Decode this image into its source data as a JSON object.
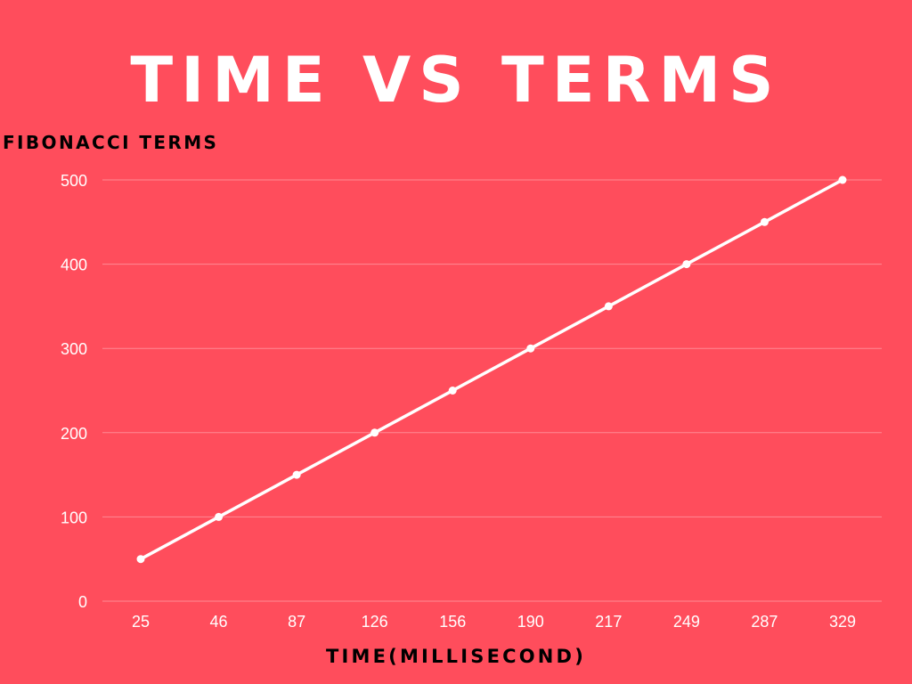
{
  "colors": {
    "background": "#ff4d5c",
    "line": "#ffffff",
    "gridline": "#ff8a94",
    "tick_text": "#ffffff",
    "axis_title_text": "#000000",
    "title_text": "#ffffff"
  },
  "chart_data": {
    "type": "line",
    "title": "TIME VS TERMS",
    "xlabel": "TIME(MILLISECOND)",
    "ylabel": "FIBONACCI TERMS",
    "categories": [
      "25",
      "46",
      "87",
      "126",
      "156",
      "190",
      "217",
      "249",
      "287",
      "329"
    ],
    "series": [
      {
        "values": [
          50,
          100,
          150,
          200,
          250,
          300,
          350,
          400,
          450,
          500
        ]
      }
    ],
    "ylim": [
      0,
      500
    ],
    "yticks": [
      0,
      100,
      200,
      300,
      400,
      500
    ],
    "grid": true,
    "markers": true,
    "legend": "none"
  }
}
